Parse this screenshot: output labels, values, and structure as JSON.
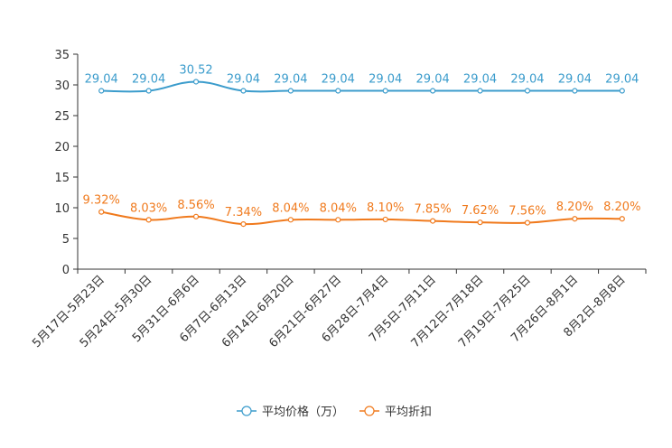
{
  "chart_data": {
    "type": "line",
    "categories": [
      "5月17日-5月23日",
      "5月24日-5月30日",
      "5月31日-6月6日",
      "6月7日-6月13日",
      "6月14日-6月20日",
      "6月21日-6月27日",
      "6月28日-7月4日",
      "7月5日-7月11日",
      "7月12日-7月18日",
      "7月19日-7月25日",
      "7月26日-8月1日",
      "8月2日-8月8日"
    ],
    "ylim": [
      0,
      35
    ],
    "yticks": [
      0,
      5,
      10,
      15,
      20,
      25,
      30,
      35
    ],
    "series": [
      {
        "name": "平均价格（万）",
        "color": "#3b9ccc",
        "values": [
          29.04,
          29.04,
          30.52,
          29.04,
          29.04,
          29.04,
          29.04,
          29.04,
          29.04,
          29.04,
          29.04,
          29.04
        ],
        "labels": [
          "29.04",
          "29.04",
          "30.52",
          "29.04",
          "29.04",
          "29.04",
          "29.04",
          "29.04",
          "29.04",
          "29.04",
          "29.04",
          "29.04"
        ]
      },
      {
        "name": "平均折扣",
        "color": "#f07a1d",
        "values": [
          9.32,
          8.03,
          8.56,
          7.34,
          8.04,
          8.04,
          8.1,
          7.85,
          7.62,
          7.56,
          8.2,
          8.2
        ],
        "labels": [
          "9.32%",
          "8.03%",
          "8.56%",
          "7.34%",
          "8.04%",
          "8.04%",
          "8.10%",
          "7.85%",
          "7.62%",
          "7.56%",
          "8.20%",
          "8.20%"
        ]
      }
    ]
  }
}
